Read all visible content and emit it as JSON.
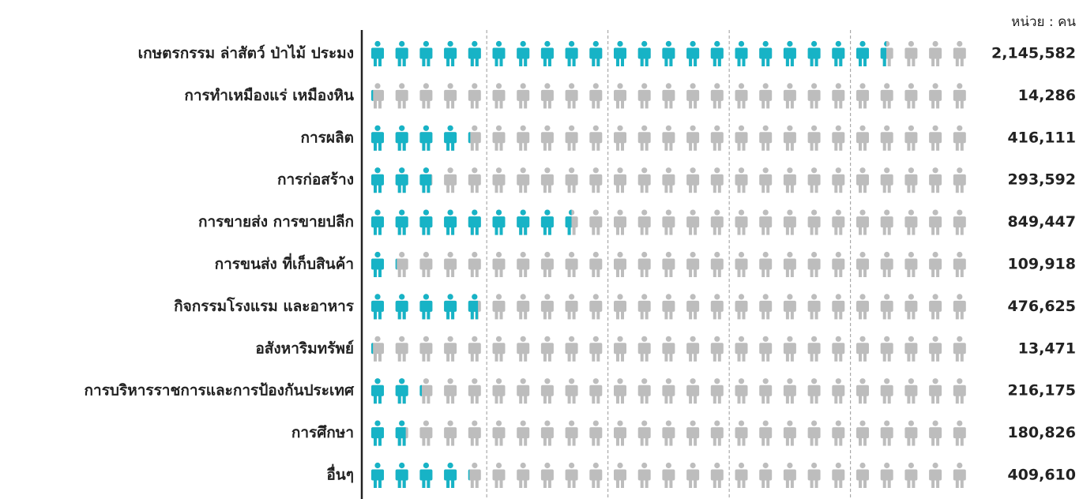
{
  "chart_data": {
    "type": "pictograph",
    "unit_label": "หน่วย : คน",
    "categories": [
      "เกษตรกรรม ล่าสัตว์ ป่าไม้ ประมง",
      "การทำเหมืองแร่ เหมืองหิน",
      "การผลิต",
      "การก่อสร้าง",
      "การขายส่ง การขายปลีก",
      "การขนส่ง ที่เก็บสินค้า",
      "กิจกรรมโรงแรม และอาหาร",
      "อสังหาริมทรัพย์",
      "การบริหารราชการและการป้องกันประเทศ",
      "การศึกษา",
      "อื่นๆ"
    ],
    "values": [
      2145582,
      14286,
      416111,
      293592,
      849447,
      109918,
      476625,
      13471,
      216175,
      180826,
      409610
    ],
    "value_labels": [
      "2,145,582",
      "14,286",
      "416,111",
      "293,592",
      "849,447",
      "109,918",
      "476,625",
      "13,471",
      "216,175",
      "180,826",
      "409,610"
    ],
    "color": "#17b3c6",
    "empty_color": "#bdbdbd",
    "xlim": [
      0,
      2500000
    ],
    "xticks": [
      500000,
      1000000,
      1500000,
      2000000
    ],
    "grid": true
  }
}
